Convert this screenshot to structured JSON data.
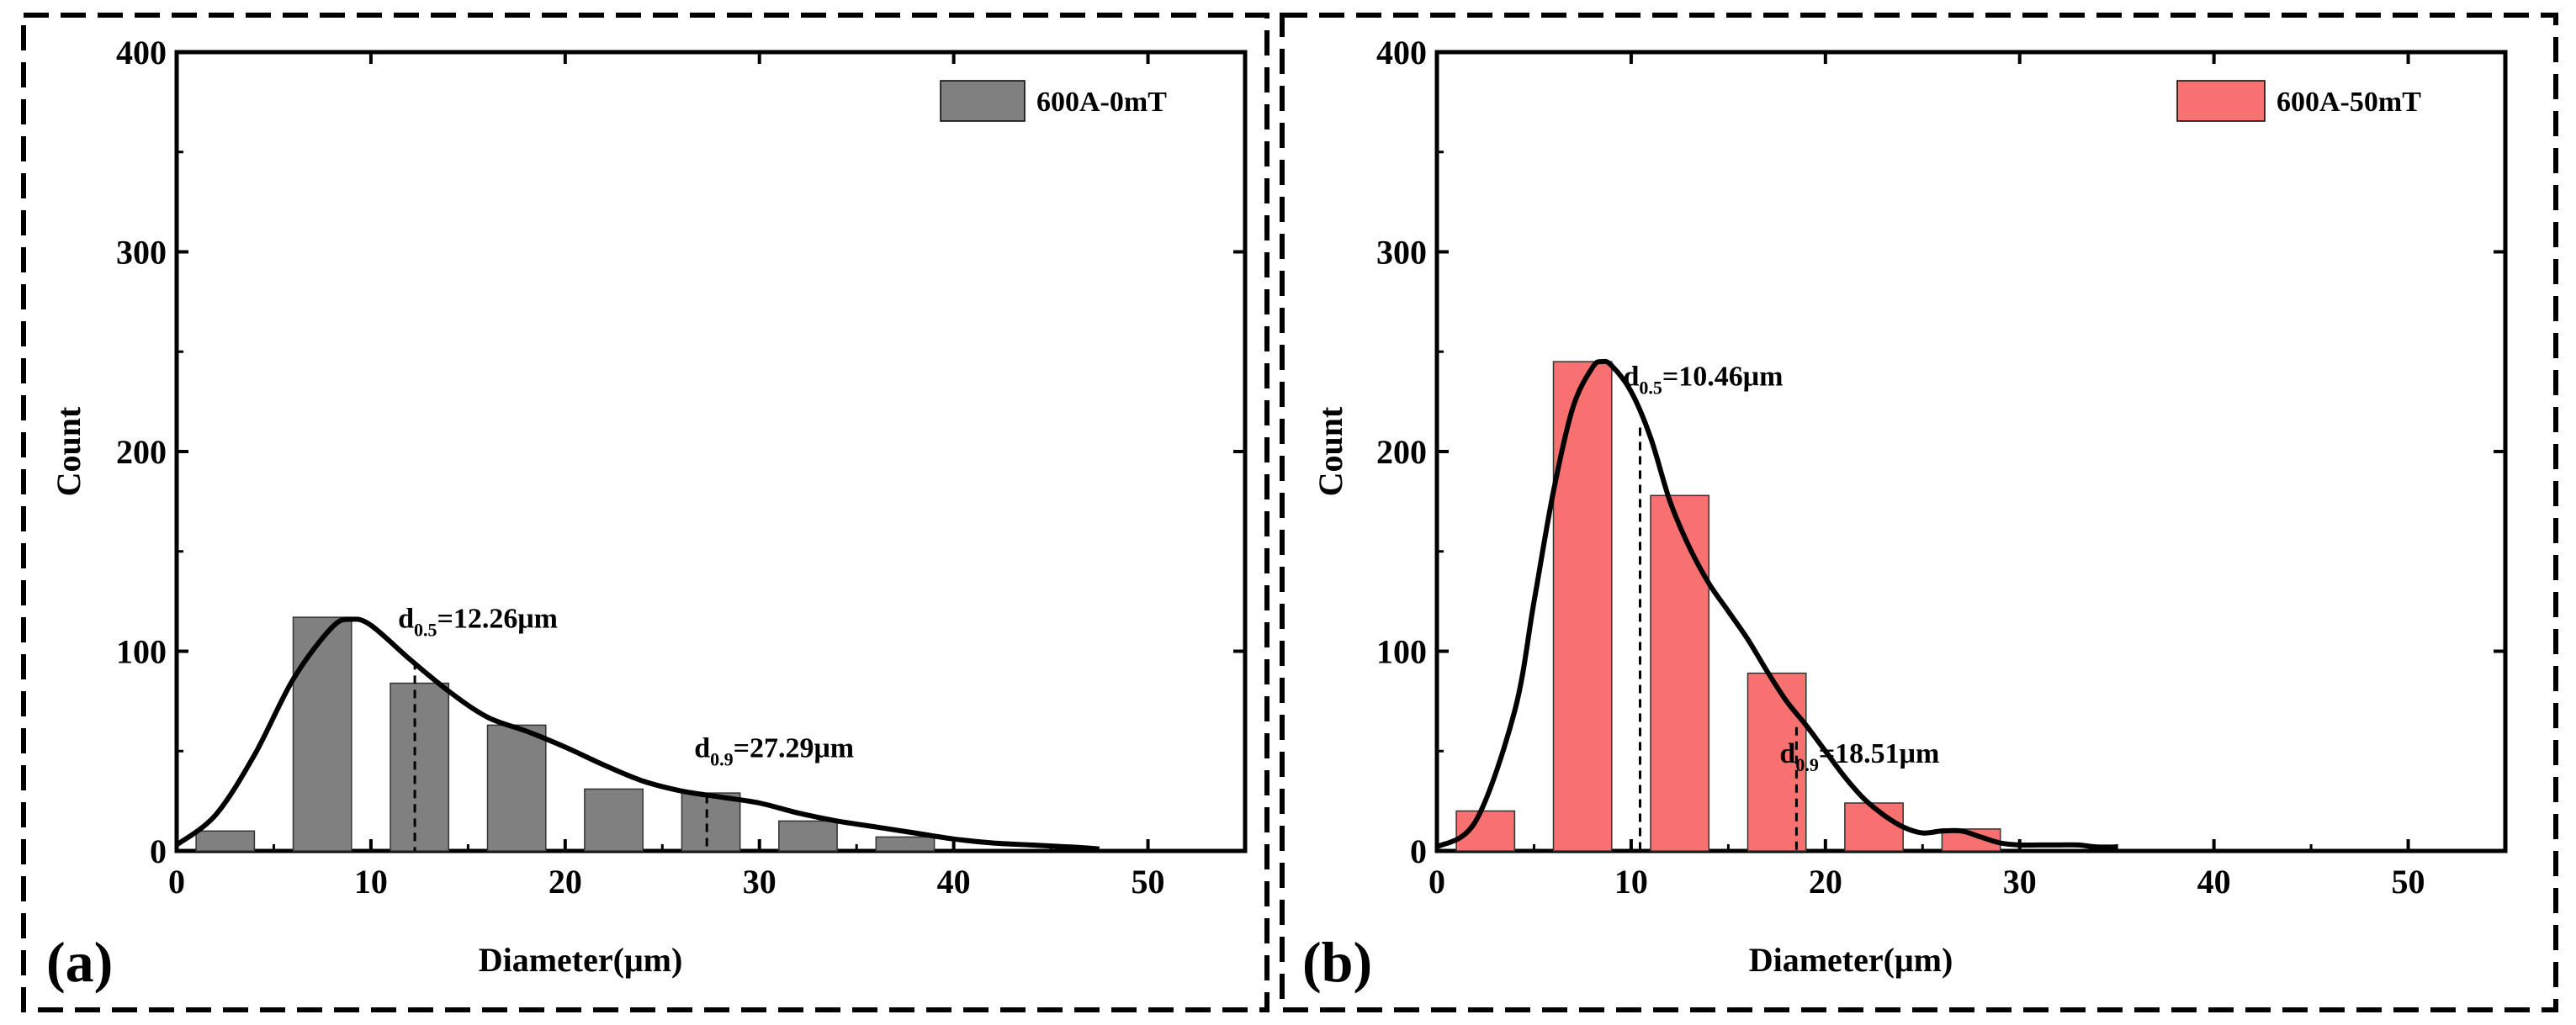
{
  "figure": {
    "background": "#ffffff",
    "frame_color": "#000000"
  },
  "chart_data": [
    {
      "panel": "(a)",
      "type": "bar",
      "title": "",
      "xlabel": "Diameter(μm)",
      "ylabel": "Count",
      "xlim": [
        0,
        55
      ],
      "ylim": [
        0,
        400
      ],
      "xticks": [
        "0",
        "10",
        "20",
        "30",
        "40",
        "50"
      ],
      "xtick_values": [
        0,
        10,
        20,
        30,
        40,
        50
      ],
      "yticks": [
        "0",
        "100",
        "200",
        "300",
        "400"
      ],
      "ytick_values": [
        0,
        100,
        200,
        300,
        400
      ],
      "bin_width": 3,
      "bin_centers": [
        2.5,
        7.5,
        12.5,
        17.5,
        22.5,
        27.5,
        32.5,
        37.5
      ],
      "values": [
        10,
        117,
        84,
        63,
        31,
        29,
        15,
        7
      ],
      "bar_color": "#808080",
      "legend": "600A-0mT",
      "fit_curve": {
        "x": [
          0,
          2,
          4,
          6,
          8,
          9,
          10,
          12,
          14,
          16,
          18,
          20,
          22,
          24,
          26,
          28,
          30,
          32,
          34,
          36,
          38,
          40,
          42,
          44,
          46,
          47.5
        ],
        "y": [
          3,
          18,
          48,
          86,
          112,
          116,
          113,
          96,
          80,
          67,
          60,
          52,
          43,
          35,
          30,
          27,
          24,
          19,
          15,
          12,
          9,
          6,
          4,
          3,
          2,
          1
        ]
      },
      "annotations": [
        {
          "base": "d",
          "sub": "0.5",
          "rest": "=12.26μm",
          "x": 12.26,
          "curve_y": 95
        },
        {
          "base": "d",
          "sub": "0.9",
          "rest": "=27.29μm",
          "x": 27.29,
          "curve_y": 28
        }
      ]
    },
    {
      "panel": "(b)",
      "type": "bar",
      "title": "",
      "xlabel": "Diameter(μm)",
      "ylabel": "Count",
      "xlim": [
        0,
        55
      ],
      "ylim": [
        0,
        400
      ],
      "xticks": [
        "0",
        "10",
        "20",
        "30",
        "40",
        "50"
      ],
      "xtick_values": [
        0,
        10,
        20,
        30,
        40,
        50
      ],
      "yticks": [
        "0",
        "100",
        "200",
        "300",
        "400"
      ],
      "ytick_values": [
        0,
        100,
        200,
        300,
        400
      ],
      "bin_width": 3,
      "bin_centers": [
        2.5,
        7.5,
        12.5,
        17.5,
        22.5,
        27.5
      ],
      "values": [
        20,
        245,
        178,
        89,
        24,
        11
      ],
      "bar_color": "#f87171",
      "legend": "600A-50mT",
      "fit_curve": {
        "x": [
          0,
          2,
          4,
          5,
          6,
          7,
          8,
          8.5,
          9,
          10,
          11,
          12,
          13,
          14,
          15,
          16,
          17,
          18,
          19,
          20,
          21,
          22,
          23,
          24,
          25,
          26,
          27,
          28,
          29,
          30,
          31,
          32,
          33,
          34,
          35
        ],
        "y": [
          2,
          15,
          70,
          125,
          180,
          222,
          242,
          245,
          243,
          230,
          207,
          175,
          152,
          134,
          120,
          106,
          90,
          75,
          63,
          50,
          37,
          26,
          18,
          12,
          9,
          10,
          10,
          7,
          4,
          3,
          3,
          3,
          3,
          2,
          2
        ]
      },
      "annotations": [
        {
          "base": "d",
          "sub": "0.5",
          "rest": "=10.46μm",
          "x": 10.46,
          "curve_y": 212
        },
        {
          "base": "d",
          "sub": "0.9",
          "rest": "=18.51μm",
          "x": 18.51,
          "curve_y": 62
        }
      ]
    }
  ]
}
